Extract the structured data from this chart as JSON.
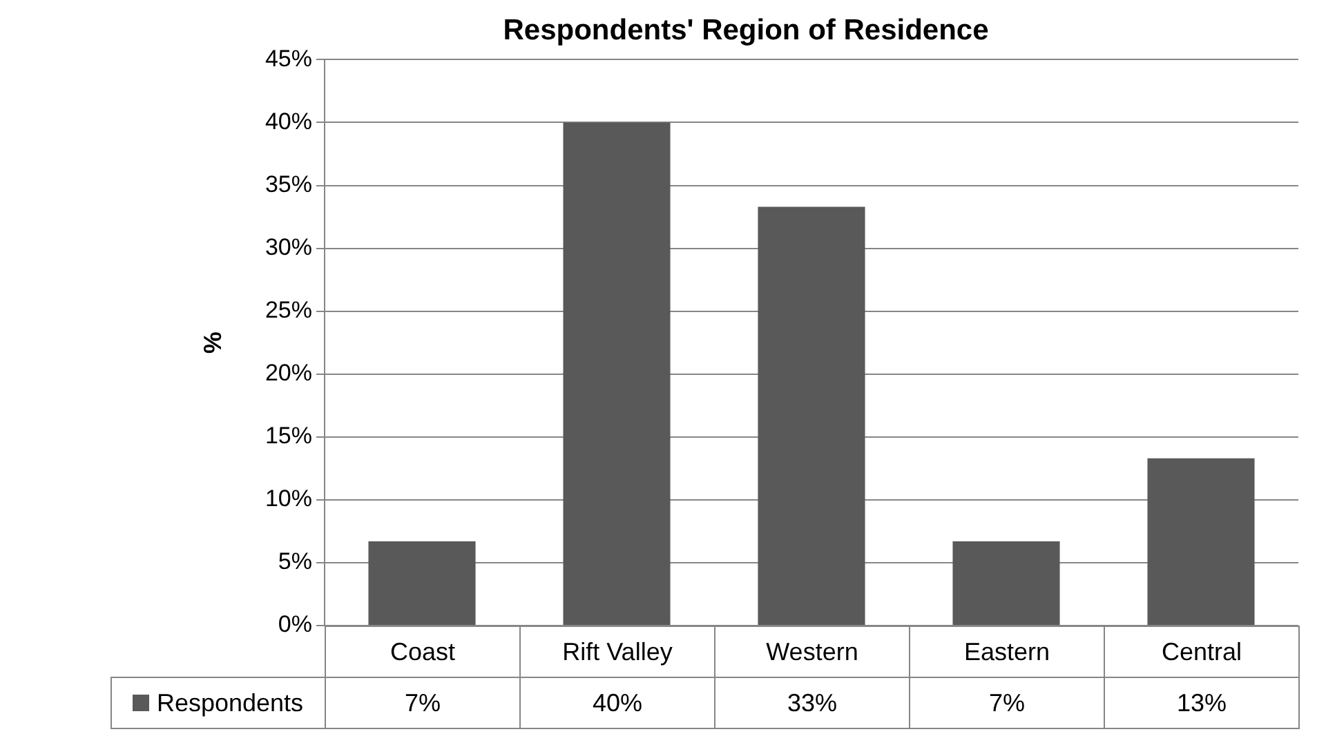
{
  "chart_data": {
    "type": "bar",
    "title": "Respondents' Region of Residence",
    "ylabel": "%",
    "categories": [
      "Coast",
      "Rift Valley",
      "Western",
      "Eastern",
      "Central"
    ],
    "series": [
      {
        "name": "Respondents",
        "color": "#595959",
        "values": [
          6.7,
          40,
          33.3,
          6.7,
          13.3
        ],
        "value_labels": [
          "7%",
          "40%",
          "33%",
          "7%",
          "13%"
        ]
      }
    ],
    "ylim": [
      0,
      45
    ],
    "yticks": [
      {
        "value": 0,
        "label": "0%"
      },
      {
        "value": 5,
        "label": "5%"
      },
      {
        "value": 10,
        "label": "10%"
      },
      {
        "value": 15,
        "label": "15%"
      },
      {
        "value": 20,
        "label": "20%"
      },
      {
        "value": 25,
        "label": "25%"
      },
      {
        "value": 30,
        "label": "30%"
      },
      {
        "value": 35,
        "label": "35%"
      },
      {
        "value": 40,
        "label": "40%"
      },
      {
        "value": 45,
        "label": "45%"
      }
    ],
    "grid": "y",
    "legend": "bottom left"
  }
}
